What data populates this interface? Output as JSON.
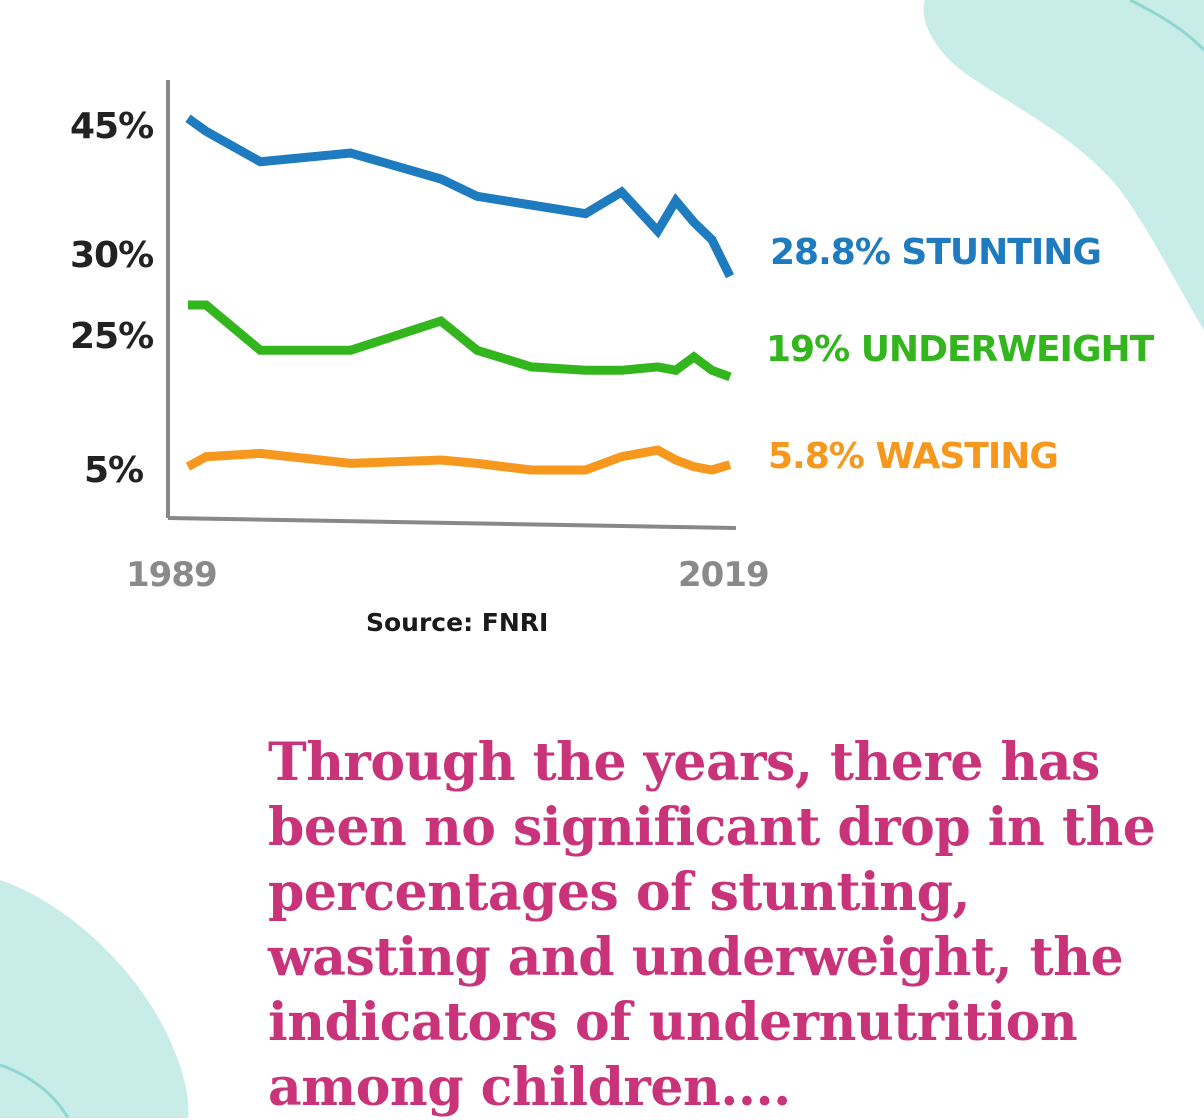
{
  "colors": {
    "stunting": "#1f7bbf",
    "underweight": "#33b51d",
    "wasting": "#f5981d",
    "caption": "#c8337a",
    "background_blob": "#c8ede9"
  },
  "chart_data": {
    "type": "line",
    "x": [
      1989,
      1990,
      1993,
      1998,
      2003,
      2005,
      2008,
      2011,
      2013,
      2015,
      2016,
      2017,
      2018,
      2019
    ],
    "x_tick_labels": [
      "1989",
      "2019"
    ],
    "y_tick_labels": [
      "45%",
      "30%",
      "25%",
      "5%"
    ],
    "y_tick_values": [
      45,
      30,
      25,
      5
    ],
    "series": [
      {
        "key": "stunting",
        "name": "STUNTING",
        "label": "28.8% STUNTING",
        "values": [
          46,
          44.5,
          41,
          42,
          39,
          37,
          36,
          35,
          37.5,
          33,
          36.5,
          34,
          32,
          28.8
        ]
      },
      {
        "key": "underweight",
        "name": "UNDERWEIGHT",
        "label": "19% UNDERWEIGHT",
        "values": [
          27,
          27,
          23,
          23,
          26,
          23,
          20.5,
          20,
          20,
          20.5,
          20,
          22,
          20,
          19
        ]
      },
      {
        "key": "wasting",
        "name": "WASTING",
        "label": "5.8% WASTING",
        "values": [
          5.5,
          7,
          7.5,
          6,
          6.5,
          6,
          5,
          5,
          7,
          8,
          6.5,
          5.5,
          5,
          5.8
        ]
      }
    ],
    "source": "Source: FNRI",
    "grid": false,
    "legend": "inline-right"
  },
  "caption": "Through the years, there has been no significant drop in the percentages of stunting, wasting and underweight, the indicators of undernutrition among children...."
}
